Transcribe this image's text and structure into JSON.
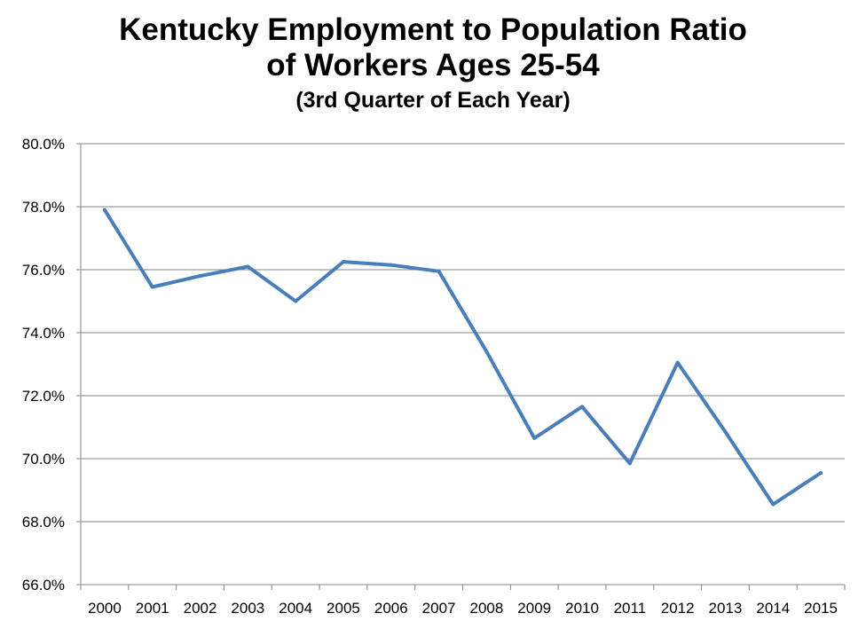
{
  "chart_data": {
    "type": "line",
    "title_lines": [
      "Kentucky Employment to Population Ratio",
      "of Workers Ages 25-54"
    ],
    "subtitle": "(3rd Quarter of Each Year)",
    "xlabel": "",
    "ylabel": "",
    "categories": [
      "2000",
      "2001",
      "2002",
      "2003",
      "2004",
      "2005",
      "2006",
      "2007",
      "2008",
      "2009",
      "2010",
      "2011",
      "2012",
      "2013",
      "2014",
      "2015"
    ],
    "series": [
      {
        "values": [
          77.9,
          75.45,
          75.8,
          76.1,
          75.0,
          76.25,
          76.15,
          75.95,
          73.4,
          70.65,
          71.65,
          69.85,
          73.05,
          70.85,
          68.55,
          69.55
        ],
        "color": "#4a7ebb"
      }
    ],
    "ylim": [
      66.0,
      80.0
    ],
    "yticks": [
      "66.0%",
      "68.0%",
      "70.0%",
      "72.0%",
      "74.0%",
      "76.0%",
      "78.0%",
      "80.0%"
    ],
    "grid": true,
    "legend": "none"
  }
}
